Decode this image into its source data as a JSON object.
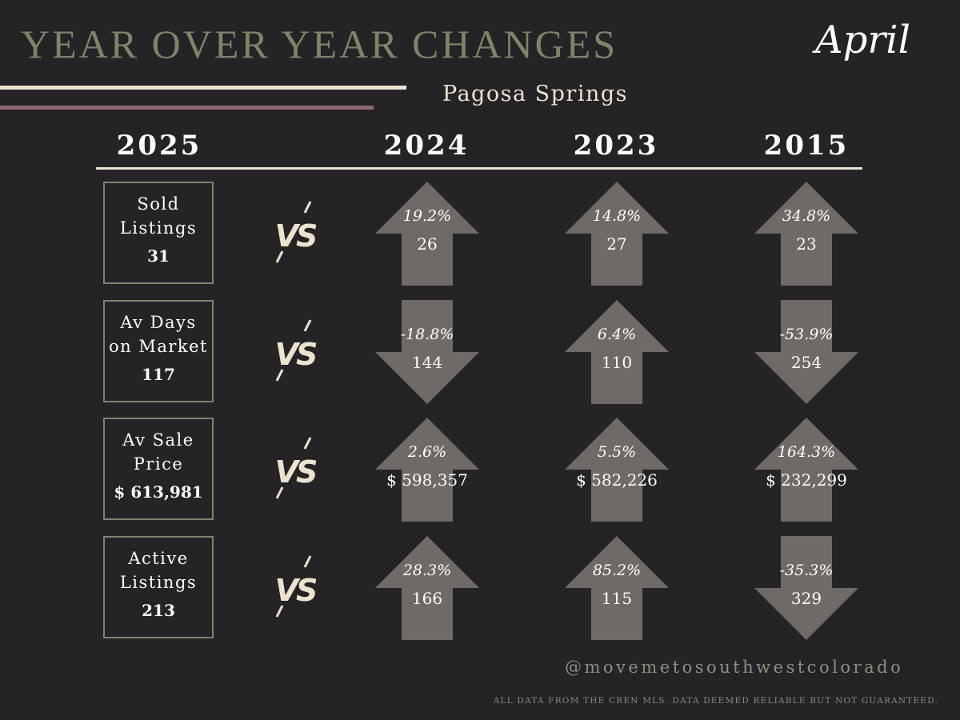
{
  "title": "YEAR OVER YEAR CHANGES",
  "month": "April",
  "location": "Pagosa Springs",
  "current_year": "2025",
  "compare_years": [
    "2024",
    "2023",
    "2015"
  ],
  "vs_label": "VS",
  "colors": {
    "background": "#252326",
    "title": "#7e8468",
    "cream": "#ece3cf",
    "mauve": "#8a6a71",
    "arrow": "#6f6a66",
    "box_border": "#7e8468"
  },
  "metrics": [
    {
      "label": "Sold Listings",
      "value": "31",
      "comparisons": [
        {
          "year": "2024",
          "pct": "19.2%",
          "value": "26",
          "direction": "up"
        },
        {
          "year": "2023",
          "pct": "14.8%",
          "value": "27",
          "direction": "up"
        },
        {
          "year": "2015",
          "pct": "34.8%",
          "value": "23",
          "direction": "up"
        }
      ]
    },
    {
      "label": "Av Days on Market",
      "value": "117",
      "comparisons": [
        {
          "year": "2024",
          "pct": "-18.8%",
          "value": "144",
          "direction": "down"
        },
        {
          "year": "2023",
          "pct": "6.4%",
          "value": "110",
          "direction": "up"
        },
        {
          "year": "2015",
          "pct": "-53.9%",
          "value": "254",
          "direction": "down"
        }
      ]
    },
    {
      "label": "Av Sale Price",
      "value": "$ 613,981",
      "comparisons": [
        {
          "year": "2024",
          "pct": "2.6%",
          "value": "$ 598,357",
          "direction": "up"
        },
        {
          "year": "2023",
          "pct": "5.5%",
          "value": "$ 582,226",
          "direction": "up"
        },
        {
          "year": "2015",
          "pct": "164.3%",
          "value": "$ 232,299",
          "direction": "up"
        }
      ]
    },
    {
      "label": "Active Listings",
      "value": "213",
      "comparisons": [
        {
          "year": "2024",
          "pct": "28.3%",
          "value": "166",
          "direction": "up"
        },
        {
          "year": "2023",
          "pct": "85.2%",
          "value": "115",
          "direction": "up"
        },
        {
          "year": "2015",
          "pct": "-35.3%",
          "value": "329",
          "direction": "down"
        }
      ]
    }
  ],
  "social_handle": "@movemetosouthwestcolorado",
  "disclaimer": "ALL DATA FROM THE CREN MLS. DATA DEEMED RELIABLE BUT NOT GUARANTEED."
}
